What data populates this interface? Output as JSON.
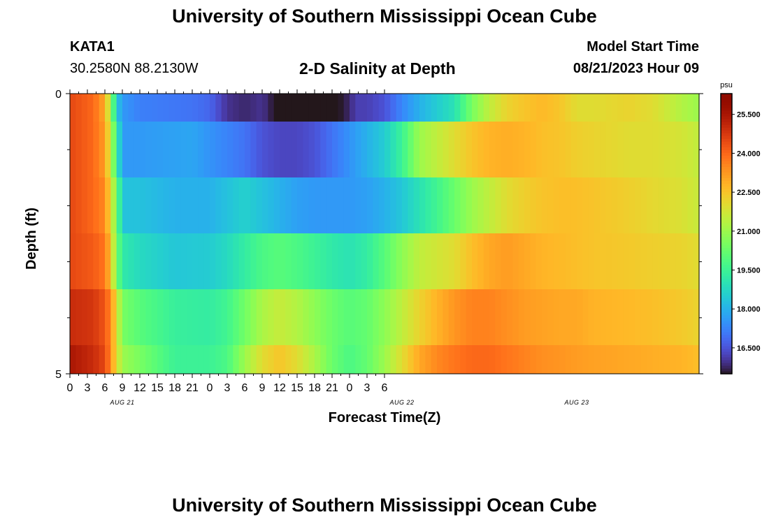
{
  "header": {
    "title_top": "University of Southern Mississippi Ocean Cube",
    "station": "KATA1",
    "coords": "30.2580N  88.2130W",
    "plot_title": "2-D Salinity at Depth",
    "model_start_label": "Model Start Time",
    "model_start_value": "08/21/2023 Hour 09",
    "title_bottom": "University of Southern Mississippi Ocean Cube"
  },
  "chart_data": {
    "type": "heatmap",
    "title": "2-D Salinity at Depth",
    "xlabel": "Forecast Time(Z)",
    "ylabel": "Depth (ft)",
    "x_tick_labels": [
      "0",
      "3",
      "6",
      "9",
      "12",
      "15",
      "18",
      "21",
      "0",
      "3",
      "6",
      "9",
      "12",
      "15",
      "18",
      "21",
      "0",
      "3",
      "6"
    ],
    "date_labels": [
      {
        "text": "AUG 21",
        "hour": 9
      },
      {
        "text": "AUG 22",
        "hour": 57
      },
      {
        "text": "AUG 23",
        "hour": 87
      }
    ],
    "x_range_hours": [
      0,
      108
    ],
    "x_major_step_hours": 3,
    "y_range": [
      0,
      5
    ],
    "y_tick_labels": [
      "0",
      "5"
    ],
    "y_minor_ticks": [
      1,
      2,
      3,
      4
    ],
    "depth_layers": [
      {
        "depth_range": [
          0,
          1
        ],
        "time_hours": [
          0,
          4,
          6,
          7,
          8,
          9,
          12,
          21,
          24,
          27,
          30,
          33,
          36,
          39,
          42,
          45,
          48,
          49,
          51,
          54,
          57,
          60,
          66,
          69,
          72,
          75,
          78,
          81,
          84,
          87,
          90,
          96,
          100,
          105,
          108
        ],
        "salinity": [
          24.5,
          24.0,
          23.0,
          21.0,
          18.5,
          17.6,
          17.2,
          17.0,
          16.8,
          16.0,
          15.8,
          16.0,
          15.3,
          15.0,
          15.0,
          15.3,
          15.8,
          16.2,
          16.2,
          16.5,
          17.3,
          18.0,
          19.0,
          20.5,
          21.5,
          22.2,
          22.5,
          22.7,
          22.5,
          22.0,
          22.0,
          22.2,
          22.0,
          21.3,
          21.0
        ]
      },
      {
        "depth_range": [
          1,
          2
        ],
        "time_hours": [
          0,
          4,
          6,
          7,
          8,
          9,
          12,
          21,
          24,
          30,
          33,
          36,
          39,
          42,
          45,
          48,
          51,
          54,
          57,
          60,
          66,
          69,
          72,
          75,
          78,
          81,
          84,
          87,
          90,
          96,
          100,
          105,
          108
        ],
        "salinity": [
          24.5,
          24.0,
          23.2,
          21.5,
          19.5,
          17.6,
          17.6,
          17.8,
          17.5,
          17.0,
          16.5,
          16.3,
          16.3,
          16.5,
          17.0,
          17.5,
          18.0,
          18.5,
          19.5,
          21.0,
          22.0,
          22.5,
          22.8,
          22.9,
          22.8,
          22.6,
          22.5,
          22.3,
          22.2,
          22.0,
          22.0,
          21.8,
          21.5
        ]
      },
      {
        "depth_range": [
          2,
          3
        ],
        "time_hours": [
          0,
          4,
          6,
          7,
          8,
          9,
          12,
          18,
          24,
          27,
          30,
          33,
          36,
          39,
          42,
          45,
          48,
          51,
          54,
          57,
          60,
          63,
          66,
          69,
          72,
          75,
          78,
          81,
          84,
          87,
          90,
          96,
          100,
          105,
          108
        ],
        "salinity": [
          24.5,
          24.0,
          23.5,
          22.0,
          20.5,
          18.3,
          18.3,
          18.0,
          18.0,
          18.3,
          18.6,
          18.3,
          18.0,
          17.7,
          17.6,
          17.6,
          17.6,
          17.7,
          18.0,
          18.4,
          19.0,
          19.6,
          20.3,
          21.0,
          21.5,
          22.0,
          22.3,
          22.5,
          22.6,
          22.6,
          22.5,
          22.3,
          22.1,
          21.9,
          21.6
        ]
      },
      {
        "depth_range": [
          3,
          4
        ],
        "time_hours": [
          0,
          4,
          6,
          7,
          8,
          9,
          12,
          18,
          24,
          27,
          30,
          33,
          36,
          39,
          42,
          45,
          48,
          51,
          54,
          57,
          60,
          66,
          69,
          72,
          75,
          78,
          81,
          84,
          87,
          90,
          96,
          100,
          105,
          108
        ],
        "salinity": [
          24.5,
          24.2,
          23.8,
          22.5,
          20.5,
          19.2,
          18.8,
          18.4,
          18.5,
          18.8,
          19.3,
          19.8,
          20.0,
          19.8,
          19.5,
          19.2,
          19.0,
          19.3,
          20.0,
          20.8,
          21.5,
          22.0,
          22.6,
          23.0,
          23.2,
          23.0,
          22.8,
          22.7,
          22.6,
          22.5,
          22.4,
          22.3,
          22.2,
          22.0
        ]
      },
      {
        "depth_range": [
          4,
          5
        ],
        "time_hours": [
          0,
          4,
          6,
          7,
          8,
          9,
          12,
          18,
          24,
          27,
          30,
          33,
          36,
          39,
          42,
          45,
          48,
          51,
          54,
          57,
          60,
          63,
          66,
          69,
          72,
          75,
          78,
          81,
          84,
          87,
          90,
          96,
          100,
          105,
          108
        ],
        "salinity": [
          25.0,
          24.8,
          24.3,
          23.5,
          22.0,
          20.5,
          20.0,
          19.4,
          19.3,
          19.6,
          20.4,
          21.2,
          21.6,
          21.3,
          20.8,
          20.3,
          20.0,
          20.2,
          20.8,
          21.5,
          22.2,
          22.8,
          23.3,
          23.6,
          23.6,
          23.4,
          23.2,
          23.1,
          23.0,
          23.0,
          22.8,
          22.7,
          22.6,
          22.4,
          22.2
        ]
      },
      {
        "depth_range": [
          5,
          6
        ],
        "time_hours": [
          0,
          4,
          6,
          7,
          8,
          9,
          12,
          18,
          24,
          27,
          30,
          33,
          36,
          39,
          42,
          45,
          48,
          51,
          54,
          57,
          60,
          63,
          66,
          69,
          72,
          75,
          78,
          81,
          84,
          87,
          90,
          96,
          100,
          105,
          108
        ],
        "salinity": [
          25.5,
          25.0,
          24.5,
          23.5,
          22.0,
          21.0,
          20.5,
          19.5,
          19.5,
          19.8,
          21.0,
          22.0,
          22.5,
          22.0,
          21.2,
          20.3,
          19.8,
          20.2,
          21.0,
          22.0,
          23.0,
          23.5,
          23.8,
          24.0,
          24.0,
          23.8,
          23.6,
          23.4,
          23.3,
          23.2,
          23.1,
          23.0,
          22.9,
          22.8,
          22.6
        ]
      }
    ],
    "colorbar": {
      "unit": "psu",
      "range": [
        15.5,
        26.3
      ],
      "tick_values": [
        16.5,
        18.0,
        19.5,
        21.0,
        22.5,
        24.0,
        25.5
      ],
      "tick_labels": [
        "16.500",
        "18.000",
        "19.500",
        "21.000",
        "22.500",
        "24.000",
        "25.500"
      ],
      "colormap": "turbo"
    }
  }
}
